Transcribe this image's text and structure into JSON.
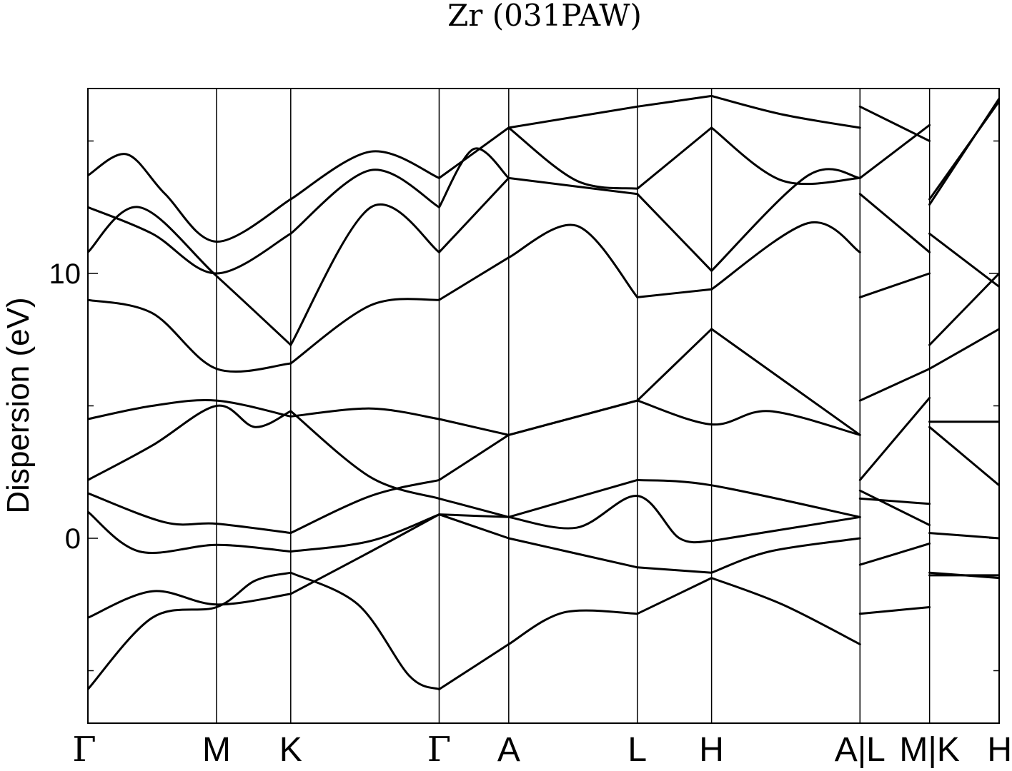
{
  "chart_data": {
    "type": "line",
    "title": "Zr (031PAW)",
    "ylabel": "Dispersion (eV)",
    "xlabel": "",
    "ylim": [
      -7,
      17
    ],
    "yticks": [
      {
        "value": 0,
        "label": "0"
      },
      {
        "value": 10,
        "label": "10"
      }
    ],
    "yminor_ticks": [
      -5,
      5,
      15
    ],
    "grid": false,
    "legend": "none",
    "line_color": "#000000",
    "x_segments": [
      {
        "from": "Γ",
        "to": "M",
        "x0": 0.0,
        "x1": 1.0
      },
      {
        "from": "M",
        "to": "K",
        "x0": 1.0,
        "x1": 1.577
      },
      {
        "from": "K",
        "to": "Γ",
        "x0": 1.577,
        "x1": 2.731
      },
      {
        "from": "Γ",
        "to": "A",
        "x0": 2.731,
        "x1": 3.272
      },
      {
        "from": "A",
        "to": "L",
        "x0": 3.272,
        "x1": 4.272
      },
      {
        "from": "L",
        "to": "H",
        "x0": 4.272,
        "x1": 4.849
      },
      {
        "from": "H",
        "to": "A",
        "x0": 4.849,
        "x1": 6.003
      },
      {
        "from": "L",
        "to": "M",
        "x0": 6.003,
        "x1": 6.544
      },
      {
        "from": "K",
        "to": "H",
        "x0": 6.544,
        "x1": 7.085
      }
    ],
    "xticks": [
      {
        "value": 0.0,
        "label": "Γ"
      },
      {
        "value": 1.0,
        "label": "M"
      },
      {
        "value": 1.577,
        "label": "K"
      },
      {
        "value": 2.731,
        "label": "Γ"
      },
      {
        "value": 3.272,
        "label": "A"
      },
      {
        "value": 4.272,
        "label": "L"
      },
      {
        "value": 4.849,
        "label": "H"
      },
      {
        "value": 6.003,
        "label": "A|L"
      },
      {
        "value": 6.544,
        "label": "M|K"
      },
      {
        "value": 7.085,
        "label": "H"
      }
    ],
    "xlim": [
      0.0,
      7.085
    ],
    "series": [
      {
        "segments": [
          [
            [
              0,
              -5.7
            ],
            [
              0.5,
              -3.0
            ],
            [
              1.0,
              -2.6
            ],
            [
              1.3,
              -1.6
            ],
            [
              1.577,
              -1.3
            ]
          ],
          [
            [
              1.577,
              -1.3
            ],
            [
              2.1,
              -2.5
            ],
            [
              2.5,
              -5.2
            ],
            [
              2.731,
              -5.7
            ]
          ],
          [
            [
              2.731,
              -5.7
            ],
            [
              3.272,
              -4.0
            ]
          ],
          [
            [
              3.272,
              -4.0
            ],
            [
              3.7,
              -2.8
            ],
            [
              4.272,
              -2.85
            ]
          ],
          [
            [
              4.272,
              -2.85
            ],
            [
              4.849,
              -1.5
            ]
          ],
          [
            [
              4.849,
              -1.5
            ],
            [
              5.4,
              -2.5
            ],
            [
              6.003,
              -4.0
            ]
          ],
          [
            [
              6.003,
              -2.85
            ],
            [
              6.544,
              -2.6
            ]
          ],
          [
            [
              6.544,
              -1.3
            ],
            [
              7.085,
              -1.5
            ]
          ]
        ]
      },
      {
        "segments": [
          [
            [
              0,
              -3.0
            ],
            [
              0.5,
              -2.0
            ],
            [
              1.0,
              -2.5
            ],
            [
              1.577,
              -2.1
            ]
          ],
          [
            [
              1.577,
              -2.1
            ],
            [
              2.2,
              -0.5
            ],
            [
              2.731,
              0.9
            ]
          ],
          [
            [
              2.731,
              0.9
            ],
            [
              3.272,
              0.8
            ]
          ],
          [
            [
              3.272,
              0.0
            ],
            [
              4.272,
              -1.1
            ]
          ],
          [
            [
              4.272,
              -1.1
            ],
            [
              4.849,
              -1.3
            ]
          ],
          [
            [
              4.849,
              -1.3
            ],
            [
              5.3,
              -0.5
            ],
            [
              6.003,
              0.0
            ]
          ],
          [
            [
              6.003,
              -1.0
            ],
            [
              6.544,
              -0.2
            ]
          ],
          [
            [
              6.544,
              -1.4
            ],
            [
              7.085,
              -1.4
            ]
          ]
        ]
      },
      {
        "segments": [
          [
            [
              0,
              1.0
            ],
            [
              0.4,
              -0.5
            ],
            [
              1.0,
              -0.25
            ],
            [
              1.577,
              -0.5
            ]
          ],
          [
            [
              1.577,
              -0.5
            ],
            [
              2.2,
              -0.1
            ],
            [
              2.731,
              0.9
            ]
          ],
          [
            [
              2.731,
              0.9
            ],
            [
              3.272,
              0.0
            ]
          ],
          [
            [
              3.272,
              0.8
            ],
            [
              3.8,
              0.4
            ],
            [
              4.272,
              1.6
            ],
            [
              4.6,
              0.0
            ],
            [
              4.849,
              -0.1
            ]
          ],
          [
            [
              4.849,
              -0.1
            ],
            [
              6.003,
              0.8
            ]
          ],
          [
            [
              6.003,
              1.8
            ],
            [
              6.544,
              0.5
            ]
          ],
          [
            [
              6.544,
              0.2
            ],
            [
              7.085,
              0.0
            ]
          ]
        ]
      },
      {
        "segments": [
          [
            [
              0,
              1.7
            ],
            [
              0.6,
              0.6
            ],
            [
              1.0,
              0.55
            ],
            [
              1.577,
              0.2
            ]
          ],
          [
            [
              1.577,
              0.2
            ],
            [
              2.2,
              1.6
            ],
            [
              2.731,
              2.2
            ]
          ],
          [
            [
              2.731,
              2.2
            ],
            [
              3.272,
              3.9
            ]
          ],
          [
            [
              3.272,
              3.9
            ],
            [
              4.272,
              5.2
            ]
          ],
          [
            [
              4.272,
              5.2
            ],
            [
              4.849,
              4.3
            ],
            [
              5.3,
              4.8
            ],
            [
              6.003,
              3.9
            ]
          ],
          [
            [
              6.003,
              2.2
            ],
            [
              6.544,
              5.3
            ]
          ],
          [
            [
              6.544,
              4.4
            ],
            [
              7.085,
              4.4
            ]
          ]
        ]
      },
      {
        "segments": [
          [
            [
              0,
              2.2
            ],
            [
              0.5,
              3.5
            ],
            [
              1.0,
              5.0
            ],
            [
              1.3,
              4.2
            ],
            [
              1.577,
              4.8
            ]
          ],
          [
            [
              1.577,
              4.8
            ],
            [
              2.2,
              2.3
            ],
            [
              2.731,
              1.5
            ]
          ],
          [
            [
              2.731,
              1.5
            ],
            [
              3.272,
              0.8
            ]
          ],
          [
            [
              3.272,
              0.8
            ],
            [
              4.272,
              2.2
            ]
          ],
          [
            [
              4.272,
              2.2
            ],
            [
              4.849,
              2.0
            ],
            [
              6.003,
              0.8
            ]
          ],
          [
            [
              6.003,
              1.5
            ],
            [
              6.544,
              1.3
            ]
          ],
          [
            [
              6.544,
              4.2
            ],
            [
              7.085,
              2.0
            ]
          ]
        ]
      },
      {
        "segments": [
          [
            [
              0,
              4.5
            ],
            [
              0.5,
              5.0
            ],
            [
              1.0,
              5.2
            ],
            [
              1.577,
              4.6
            ]
          ],
          [
            [
              1.577,
              4.6
            ],
            [
              2.2,
              4.9
            ],
            [
              2.731,
              4.5
            ]
          ],
          [
            [
              2.731,
              4.5
            ],
            [
              3.272,
              3.9
            ]
          ],
          [
            [
              3.272,
              3.9
            ],
            [
              4.272,
              5.2
            ]
          ],
          [
            [
              4.272,
              5.2
            ],
            [
              4.849,
              7.9
            ]
          ],
          [
            [
              4.849,
              7.9
            ],
            [
              6.003,
              3.9
            ]
          ],
          [
            [
              6.003,
              5.2
            ],
            [
              6.544,
              6.4
            ]
          ],
          [
            [
              6.544,
              6.4
            ],
            [
              7.085,
              7.9
            ]
          ]
        ]
      },
      {
        "segments": [
          [
            [
              0,
              9.0
            ],
            [
              0.5,
              8.5
            ],
            [
              1.0,
              6.4
            ],
            [
              1.577,
              6.6
            ]
          ],
          [
            [
              1.577,
              6.6
            ],
            [
              2.2,
              8.8
            ],
            [
              2.731,
              9.0
            ]
          ],
          [
            [
              2.731,
              9.0
            ],
            [
              3.272,
              10.6
            ]
          ],
          [
            [
              3.272,
              10.6
            ],
            [
              3.8,
              11.8
            ],
            [
              4.272,
              9.1
            ]
          ],
          [
            [
              4.272,
              9.1
            ],
            [
              4.849,
              9.4
            ]
          ],
          [
            [
              4.849,
              9.4
            ],
            [
              5.6,
              11.9
            ],
            [
              6.003,
              10.8
            ]
          ],
          [
            [
              6.003,
              9.1
            ],
            [
              6.544,
              10.0
            ]
          ],
          [
            [
              6.544,
              7.3
            ],
            [
              7.085,
              10.0
            ]
          ]
        ]
      },
      {
        "segments": [
          [
            [
              0,
              10.8
            ],
            [
              0.4,
              12.5
            ],
            [
              1.0,
              9.9
            ],
            [
              1.577,
              7.3
            ]
          ],
          [
            [
              1.577,
              7.3
            ],
            [
              2.2,
              12.5
            ],
            [
              2.731,
              10.8
            ]
          ],
          [
            [
              2.731,
              10.8
            ],
            [
              3.272,
              13.6
            ]
          ],
          [
            [
              3.272,
              13.6
            ],
            [
              4.272,
              13.0
            ]
          ],
          [
            [
              4.272,
              13.0
            ],
            [
              4.849,
              10.1
            ]
          ],
          [
            [
              4.849,
              10.1
            ],
            [
              5.6,
              13.7
            ],
            [
              6.003,
              13.6
            ]
          ],
          [
            [
              6.003,
              13.0
            ],
            [
              6.544,
              10.8
            ]
          ],
          [
            [
              6.544,
              11.5
            ],
            [
              7.085,
              9.5
            ]
          ]
        ]
      },
      {
        "segments": [
          [
            [
              0,
              12.5
            ],
            [
              0.5,
              11.5
            ],
            [
              1.0,
              10.0
            ],
            [
              1.577,
              11.5
            ]
          ],
          [
            [
              1.577,
              11.5
            ],
            [
              2.2,
              13.9
            ],
            [
              2.731,
              12.5
            ]
          ],
          [
            [
              2.731,
              12.5
            ],
            [
              3.0,
              14.7
            ],
            [
              3.272,
              13.6
            ]
          ],
          [
            [
              3.272,
              15.5
            ],
            [
              3.8,
              13.5
            ],
            [
              4.272,
              13.2
            ]
          ],
          [
            [
              4.272,
              13.2
            ],
            [
              4.849,
              15.5
            ]
          ],
          [
            [
              4.849,
              15.5
            ],
            [
              5.4,
              13.5
            ],
            [
              6.003,
              13.6
            ]
          ],
          [
            [
              6.003,
              13.6
            ],
            [
              6.544,
              15.6
            ]
          ],
          [
            [
              6.544,
              12.6
            ],
            [
              7.085,
              16.6
            ]
          ]
        ]
      },
      {
        "segments": [
          [
            [
              0,
              13.7
            ],
            [
              0.3,
              14.5
            ],
            [
              0.6,
              13.0
            ],
            [
              1.0,
              11.2
            ],
            [
              1.577,
              12.8
            ]
          ],
          [
            [
              1.577,
              12.8
            ],
            [
              2.2,
              14.6
            ],
            [
              2.731,
              13.6
            ]
          ],
          [
            [
              2.731,
              13.6
            ],
            [
              3.272,
              15.5
            ]
          ],
          [
            [
              3.272,
              15.5
            ],
            [
              4.272,
              16.3
            ]
          ],
          [
            [
              4.272,
              16.3
            ],
            [
              4.849,
              16.7
            ]
          ],
          [
            [
              4.849,
              16.7
            ],
            [
              5.4,
              16.0
            ],
            [
              6.003,
              15.5
            ]
          ],
          [
            [
              6.003,
              16.3
            ],
            [
              6.544,
              15.0
            ]
          ],
          [
            [
              6.544,
              12.8
            ],
            [
              7.085,
              16.5
            ]
          ]
        ]
      }
    ]
  }
}
